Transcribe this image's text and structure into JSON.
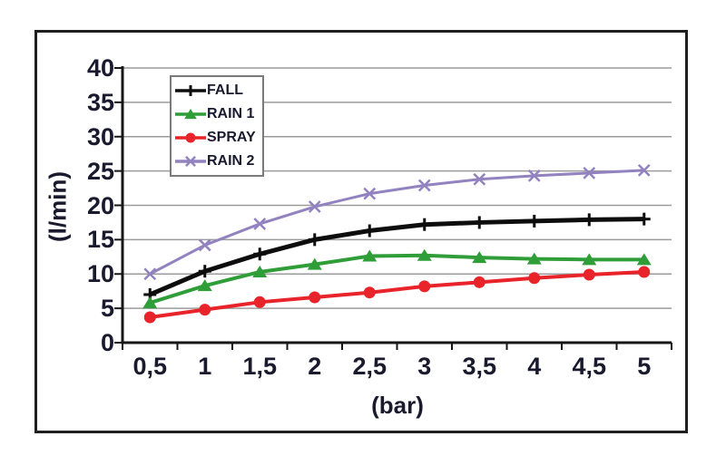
{
  "axis_text_color": "#1a1a2e",
  "frame_color": "#1f1f1f",
  "gridline_color": "#9b9b9b",
  "chart_data": {
    "type": "line",
    "title": "",
    "xlabel": "(bar)",
    "ylabel": "(l/min)",
    "categories": [
      "0,5",
      "1",
      "1,5",
      "2",
      "2,5",
      "3",
      "3,5",
      "4",
      "4,5",
      "5"
    ],
    "x_values": [
      0.5,
      1,
      1.5,
      2,
      2.5,
      3,
      3.5,
      4,
      4.5,
      5
    ],
    "y_ticks": [
      0,
      5,
      10,
      15,
      20,
      25,
      30,
      35,
      40
    ],
    "ylim": [
      0,
      40
    ],
    "grid": "horizontal-only",
    "legend_position": "inside-top-left",
    "series": [
      {
        "name": "FALL",
        "color": "#0d0d0d",
        "marker": "plus",
        "line_width": 5,
        "values": [
          7.0,
          10.4,
          12.9,
          15.0,
          16.3,
          17.2,
          17.5,
          17.7,
          17.9,
          18.0
        ]
      },
      {
        "name": "RAIN 1",
        "color": "#2f9e38",
        "marker": "triangle",
        "line_width": 4,
        "values": [
          5.8,
          8.3,
          10.3,
          11.4,
          12.6,
          12.7,
          12.4,
          12.2,
          12.1,
          12.1
        ]
      },
      {
        "name": "SPRAY",
        "color": "#e8232a",
        "marker": "circle",
        "line_width": 4,
        "values": [
          3.7,
          4.8,
          5.9,
          6.6,
          7.3,
          8.2,
          8.8,
          9.4,
          9.9,
          10.3
        ]
      },
      {
        "name": "RAIN 2",
        "color": "#9282c0",
        "marker": "x",
        "line_width": 3,
        "values": [
          10.0,
          14.2,
          17.3,
          19.8,
          21.7,
          22.9,
          23.8,
          24.3,
          24.7,
          25.1
        ]
      }
    ]
  }
}
